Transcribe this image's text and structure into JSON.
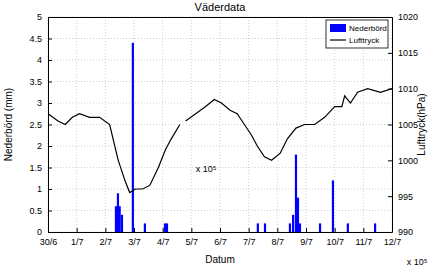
{
  "chart_data": {
    "type": "bar",
    "title": "Väderdata",
    "x_label": "Datum",
    "y_label": "Nederbörd (mm)",
    "y2_label": "Lufttryck(hPa)",
    "annotations": [
      "x 10⁵",
      "x 10⁵"
    ],
    "xlim": [
      0,
      12
    ],
    "xticks": [
      {
        "value": 0,
        "label": "30/6"
      },
      {
        "value": 1,
        "label": "1/7"
      },
      {
        "value": 2,
        "label": "2/7"
      },
      {
        "value": 3,
        "label": "3/7"
      },
      {
        "value": 4,
        "label": "4/7"
      },
      {
        "value": 5,
        "label": "5/7"
      },
      {
        "value": 6,
        "label": "6/7"
      },
      {
        "value": 7,
        "label": "7/7"
      },
      {
        "value": 8,
        "label": "8/7"
      },
      {
        "value": 9,
        "label": "9/7"
      },
      {
        "value": 10,
        "label": "10/7"
      },
      {
        "value": 11,
        "label": "11/7"
      },
      {
        "value": 12,
        "label": "12/7"
      }
    ],
    "ylim": [
      0,
      5
    ],
    "yticks": [
      0,
      0.5,
      1,
      1.5,
      2,
      2.5,
      3,
      3.5,
      4,
      4.5,
      5
    ],
    "y2lim": [
      990,
      1020
    ],
    "y2ticks": [
      990,
      995,
      1000,
      1005,
      1010,
      1015,
      1020
    ],
    "grid": true,
    "legend": "upper-right",
    "series": [
      {
        "name": "Nederbörd",
        "type": "bar",
        "color": "#0000ff",
        "x": [
          2.37,
          2.44,
          2.5,
          2.58,
          2.96,
          3.38,
          4.08,
          4.15,
          7.32,
          7.57,
          8.44,
          8.55,
          8.65,
          8.72,
          8.79,
          9.49,
          9.94,
          10.46,
          11.41
        ],
        "values": [
          0.6,
          0.9,
          0.6,
          0.4,
          4.4,
          0.2,
          0.2,
          0.2,
          0.2,
          0.2,
          0.2,
          0.4,
          1.8,
          0.8,
          0.2,
          0.2,
          1.2,
          0.2,
          0.2
        ]
      },
      {
        "name": "Lufttryck",
        "type": "line",
        "axis": "y2",
        "color": "#000000",
        "x": [
          0,
          0.35,
          0.6,
          0.85,
          1.1,
          1.45,
          1.8,
          2.15,
          2.45,
          2.7,
          2.85,
          3.05,
          3.3,
          3.55,
          3.85,
          4.1,
          4.3,
          4.6,
          4.7,
          4.8,
          5.15,
          5.5,
          5.8,
          6.05,
          6.35,
          6.6,
          6.85,
          7.1,
          7.3,
          7.55,
          7.8,
          8.1,
          8.35,
          8.65,
          8.95,
          9.3,
          9.65,
          10.0,
          10.25,
          10.35,
          10.55,
          10.8,
          11.15,
          11.6,
          12
        ],
        "values": [
          1006.5,
          1005.5,
          1005,
          1006,
          1006.5,
          1006,
          1006,
          1005,
          1000,
          997,
          995.5,
          996,
          996,
          996.5,
          999,
          1001.5,
          1003,
          1005,
          null,
          1005.5,
          1006.5,
          1007.5,
          1008.5,
          1008,
          1007,
          1006.5,
          1005,
          1003.5,
          1002,
          1000.5,
          1000,
          1001,
          1003,
          1004.5,
          1005,
          1005,
          1006,
          1007.5,
          1007.5,
          1009,
          1008,
          1009.5,
          1010,
          1009.5,
          1010
        ]
      }
    ]
  }
}
